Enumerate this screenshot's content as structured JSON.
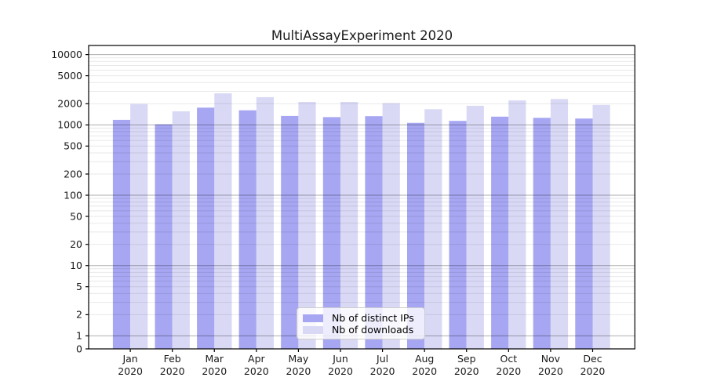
{
  "chart_data": {
    "type": "bar",
    "title": "MultiAssayExperiment 2020",
    "categories": [
      "Jan 2020",
      "Feb 2020",
      "Mar 2020",
      "Apr 2020",
      "May 2020",
      "Jun 2020",
      "Jul 2020",
      "Aug 2020",
      "Sep 2020",
      "Oct 2020",
      "Nov 2020",
      "Dec 2020"
    ],
    "series": [
      {
        "name": "Nb of distinct IPs",
        "color": "#a6a6f2",
        "values": [
          1180,
          1020,
          1760,
          1610,
          1340,
          1290,
          1330,
          1070,
          1140,
          1310,
          1260,
          1230
        ]
      },
      {
        "name": "Nb of downloads",
        "color": "#d9d9f6",
        "values": [
          1980,
          1560,
          2810,
          2480,
          2120,
          2120,
          2030,
          1670,
          1870,
          2230,
          2330,
          1930
        ]
      }
    ],
    "xlabel": "",
    "ylabel": "",
    "yscale": "log-with-zero",
    "ylim": [
      0,
      10000
    ],
    "y_tick_labels": [
      10000,
      5000,
      2000,
      1000,
      500,
      200,
      100,
      50,
      20,
      10,
      5,
      2,
      1,
      0
    ],
    "grid": "horizontal, log minor + major",
    "legend_position": "lower center"
  },
  "style": {
    "axis_color": "#000000",
    "tick_label_color": "#1a1a1a",
    "major_grid_rgba": "rgba(0,0,0,0.32)",
    "minor_grid_rgba": "rgba(0,0,0,0.09)",
    "background": "#ffffff"
  }
}
